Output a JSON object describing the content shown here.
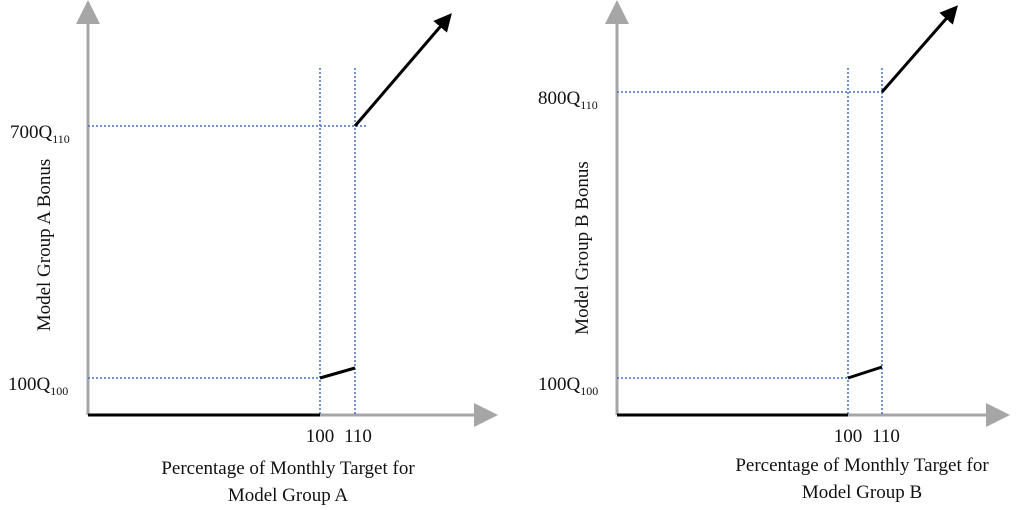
{
  "panels": [
    {
      "y_axis_title": "Model Group A Bonus",
      "x_axis_title": [
        "Percentage of Monthly Target for",
        "Model Group A"
      ],
      "x_ticks": [
        "100",
        "110"
      ],
      "y_labels": [
        {
          "main": "700Q",
          "sub": "110"
        },
        {
          "main": "100Q",
          "sub": "100"
        }
      ]
    },
    {
      "y_axis_title": "Model Group B Bonus",
      "x_axis_title": [
        "Percentage of Monthly Target for",
        "Model Group B"
      ],
      "x_ticks": [
        "100",
        "110"
      ],
      "y_labels": [
        {
          "main": "800Q",
          "sub": "110"
        },
        {
          "main": "100Q",
          "sub": "100"
        }
      ]
    }
  ]
}
